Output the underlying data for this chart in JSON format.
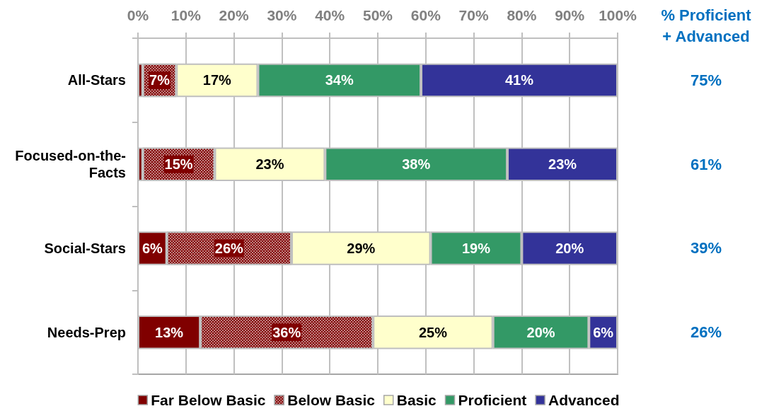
{
  "chart_data": {
    "type": "bar",
    "orientation": "horizontal",
    "stacked": true,
    "categories": [
      "All-Stars",
      "Focused-on-the-Facts",
      "Social-Stars",
      "Needs-Prep"
    ],
    "series": [
      {
        "name": "Far Below Basic",
        "color": "#800000",
        "values": [
          1,
          1,
          6,
          13
        ],
        "value_labels": [
          null,
          null,
          "6%",
          "13%"
        ]
      },
      {
        "name": "Below Basic",
        "color": "#c08080",
        "values": [
          7,
          15,
          26,
          36
        ],
        "value_labels": [
          "7%",
          "15%",
          "26%",
          "36%"
        ]
      },
      {
        "name": "Basic",
        "color": "#ffffcc",
        "values": [
          17,
          23,
          29,
          25
        ],
        "value_labels": [
          "17%",
          "23%",
          "29%",
          "25%"
        ]
      },
      {
        "name": "Proficient",
        "color": "#339966",
        "values": [
          34,
          38,
          19,
          20
        ],
        "value_labels": [
          "34%",
          "38%",
          "19%",
          "20%"
        ]
      },
      {
        "name": "Advanced",
        "color": "#333399",
        "values": [
          41,
          23,
          20,
          6
        ],
        "value_labels": [
          "41%",
          "23%",
          "20%",
          "6%"
        ]
      }
    ],
    "xlim": [
      0,
      100
    ],
    "xticks": [
      {
        "value": 0,
        "label": "0%"
      },
      {
        "value": 10,
        "label": "10%"
      },
      {
        "value": 20,
        "label": "20%"
      },
      {
        "value": 30,
        "label": "30%"
      },
      {
        "value": 40,
        "label": "40%"
      },
      {
        "value": 50,
        "label": "50%"
      },
      {
        "value": 60,
        "label": "60%"
      },
      {
        "value": 70,
        "label": "70%"
      },
      {
        "value": 80,
        "label": "80%"
      },
      {
        "value": 90,
        "label": "90%"
      },
      {
        "value": 100,
        "label": "100%"
      }
    ],
    "grid": "x",
    "legend": "bottom",
    "annotations": [
      "% Proficient + Advanced",
      "75%",
      "61%",
      "39%",
      "26%"
    ]
  }
}
